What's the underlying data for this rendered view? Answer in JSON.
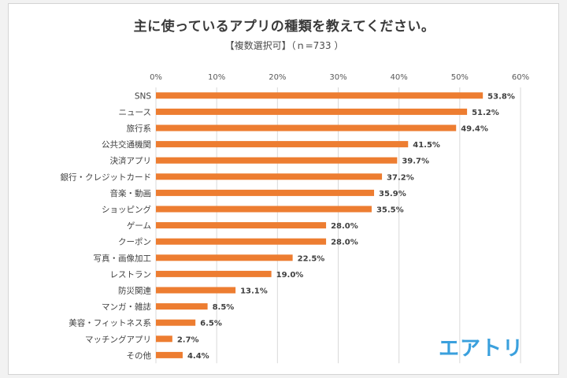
{
  "title": "主に使っているアプリの種類を教えてください。",
  "subtitle": "【複数選択可】（ｎ=733 ）",
  "logo_text": "エアトリ",
  "colors": {
    "bar": "#ED7D31",
    "grid": "#d9d9d9",
    "logo": "#3aa0dd"
  },
  "chart_data": {
    "type": "bar",
    "orientation": "horizontal",
    "title": "主に使っているアプリの種類を教えてください。",
    "subtitle": "【複数選択可】（ｎ=733 ）",
    "categories": [
      "SNS",
      "ニュース",
      "旅行系",
      "公共交通機関",
      "決済アプリ",
      "銀行・クレジットカード",
      "音楽・動画",
      "ショッピング",
      "ゲーム",
      "クーポン",
      "写真・画像加工",
      "レストラン",
      "防災関連",
      "マンガ・雑誌",
      "美容・フィットネス系",
      "マッチングアプリ",
      "その他"
    ],
    "values": [
      53.8,
      51.2,
      49.4,
      41.5,
      39.7,
      37.2,
      35.9,
      35.5,
      28.0,
      28.0,
      22.5,
      19.0,
      13.1,
      8.5,
      6.5,
      2.7,
      4.4
    ],
    "value_labels": [
      "53.8%",
      "51.2%",
      "49.4%",
      "41.5%",
      "39.7%",
      "37.2%",
      "35.9%",
      "35.5%",
      "28.0%",
      "28.0%",
      "22.5%",
      "19.0%",
      "13.1%",
      "8.5%",
      "6.5%",
      "2.7%",
      "4.4%"
    ],
    "xlim": [
      0,
      60
    ],
    "xticks": [
      "0%",
      "10%",
      "20%",
      "30%",
      "40%",
      "50%",
      "60%"
    ],
    "grid": true,
    "legend": "none"
  }
}
